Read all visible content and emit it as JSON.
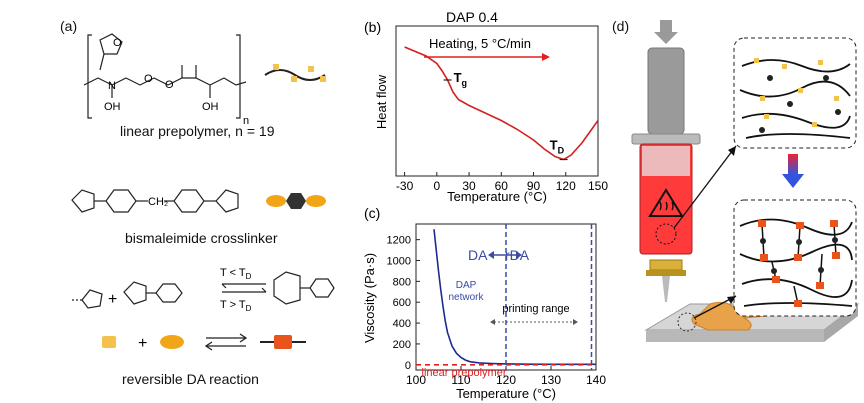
{
  "panels": {
    "a": {
      "label": "(a)",
      "prepolymer_caption": "linear prepolymer, n = 19",
      "repeat_n": "n",
      "oh_label": "OH",
      "n_atom": "N",
      "o_atom": "O",
      "crosslinker_caption": "bismaleimide crosslinker",
      "ch2_label": "CH₂",
      "condition_top": "T < T",
      "condition_bottom": "T > T",
      "condition_sub": "D",
      "plus": "+",
      "reaction_caption": "reversible DA reaction",
      "colors": {
        "chain": "#222222",
        "furan": "#f2c14e",
        "maleimide": "#f2a516",
        "adduct": "#e8541c",
        "crosslinker_core": "#333333"
      }
    },
    "b": {
      "label": "(b)",
      "title": "DAP 0.4",
      "heating_label": "Heating, 5 °C/min",
      "tg_label": "T",
      "tg_sub": "g",
      "td_label": "T",
      "td_sub": "D"
    },
    "c": {
      "label": "(c)",
      "da_label": "DA",
      "rda_label": "rDA",
      "network_label_1": "DAP",
      "network_label_2": "network",
      "printing_range_label": "printing range",
      "prepolymer_label": "linear prepolymer"
    },
    "d": {
      "label": "(d)",
      "colors": {
        "barrel_heated": "#ff3a3a",
        "syringe_grey": "#9a9a9a",
        "nozzle_gold": "#d9b13a",
        "print": "#e8a24a",
        "bed": "#cfcfcf",
        "arrow_top": "#ee2233",
        "arrow_bottom": "#3355dd"
      }
    }
  },
  "chart_data": [
    {
      "type": "line",
      "title": "DAP 0.4",
      "xlabel": "Temperature (°C)",
      "ylabel": "Heat flow",
      "xlim": [
        -38,
        150
      ],
      "xticks": [
        "-30",
        "0",
        "30",
        "60",
        "90",
        "120",
        "150"
      ],
      "xtick_values": [
        -30,
        0,
        30,
        60,
        90,
        120,
        150
      ],
      "yticks": false,
      "series": [
        {
          "color": "#d42020",
          "x": [
            -30,
            -20,
            -10,
            0,
            5,
            10,
            15,
            20,
            30,
            45,
            60,
            75,
            90,
            100,
            110,
            118,
            125,
            135,
            145,
            150
          ],
          "y": [
            0.86,
            0.83,
            0.8,
            0.75,
            0.7,
            0.64,
            0.56,
            0.51,
            0.47,
            0.42,
            0.37,
            0.31,
            0.24,
            0.18,
            0.13,
            0.11,
            0.14,
            0.22,
            0.32,
            0.37
          ]
        }
      ],
      "markers": [
        {
          "label": "Tg",
          "x": 10,
          "y": 0.64
        },
        {
          "label": "TD",
          "x": 118,
          "y": 0.11
        }
      ]
    },
    {
      "type": "line",
      "xlabel": "Temperature (°C)",
      "ylabel": "Viscosity (Pa·s)",
      "xlim": [
        100,
        140
      ],
      "ylim": [
        -50,
        1350
      ],
      "xticks": [
        "100",
        "110",
        "120",
        "130",
        "140"
      ],
      "xtick_values": [
        100,
        110,
        120,
        130,
        140
      ],
      "yticks": [
        "0",
        "200",
        "400",
        "600",
        "800",
        "1000",
        "1200"
      ],
      "ytick_values": [
        0,
        200,
        400,
        600,
        800,
        1000,
        1200
      ],
      "series": [
        {
          "name": "DAP network",
          "color": "#1c2c8c",
          "x": [
            104,
            104.5,
            105,
            105.5,
            106,
            106.5,
            107,
            108,
            109,
            110,
            111,
            112,
            114,
            117,
            120,
            125,
            130,
            135,
            140
          ],
          "y": [
            1300,
            1100,
            900,
            720,
            560,
            420,
            310,
            180,
            110,
            70,
            45,
            30,
            18,
            12,
            8,
            6,
            5,
            5,
            5
          ]
        },
        {
          "name": "linear prepolymer",
          "color": "#e02020",
          "style": "dashed",
          "x": [
            100,
            140
          ],
          "y": [
            0,
            0
          ]
        }
      ],
      "vlines": [
        120,
        139
      ],
      "annotations": [
        "DA",
        "rDA",
        "printing range"
      ]
    }
  ]
}
